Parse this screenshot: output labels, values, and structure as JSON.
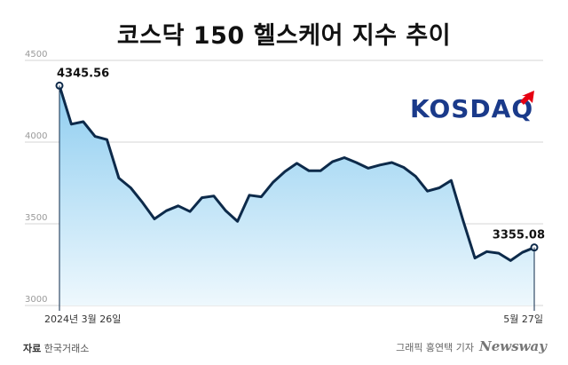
{
  "chart_data": {
    "type": "area",
    "title": "코스닥 150 헬스케어 지수 추이",
    "ylim": [
      3000,
      4500
    ],
    "yticks": [
      3000,
      3500,
      4000,
      4500
    ],
    "x_tick_labels": [
      "2024년 3월 26일",
      "5월 27일"
    ],
    "values": [
      4345.56,
      4110,
      4125,
      4035,
      4015,
      3780,
      3720,
      3630,
      3530,
      3580,
      3610,
      3575,
      3660,
      3670,
      3580,
      3515,
      3675,
      3665,
      3755,
      3820,
      3870,
      3825,
      3825,
      3880,
      3905,
      3875,
      3840,
      3860,
      3875,
      3845,
      3790,
      3700,
      3720,
      3765,
      3520,
      3290,
      3330,
      3320,
      3275,
      3325,
      3355.08
    ],
    "data_labels": [
      {
        "index": 0,
        "text": "4345.56"
      },
      {
        "index": 40,
        "text": "3355.08"
      }
    ],
    "grid": "horizontal",
    "colors": {
      "line": "#0d2a4a",
      "fill_top": "#8ecdf0",
      "fill_bottom": "#eef8fd",
      "grid": "#d6d6d6",
      "logo_blue": "#1a3a8a",
      "logo_red": "#e60012"
    }
  },
  "logo_text": "KOSDAQ",
  "source": {
    "label": "자료",
    "value": "한국거래소"
  },
  "credit": {
    "text": "그래픽 홍연택 기자",
    "brand": "Newsway"
  }
}
